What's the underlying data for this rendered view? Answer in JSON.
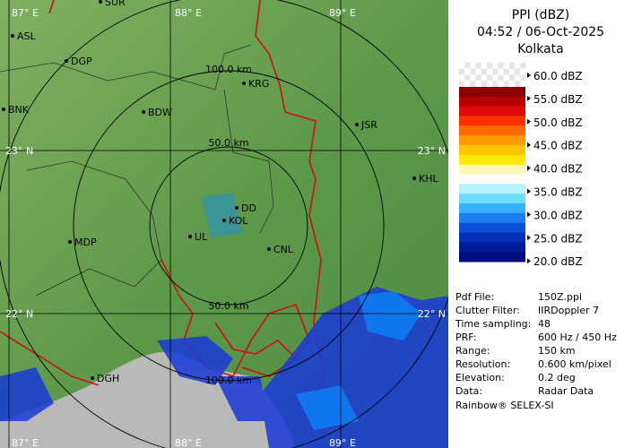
{
  "header": {
    "title": "PPI (dBZ)",
    "datetime": "04:52 / 06-Oct-2025",
    "station": "Kolkata"
  },
  "legend": {
    "labels": [
      "60.0 dBZ",
      "55.0 dBZ",
      "50.0 dBZ",
      "45.0 dBZ",
      "40.0 dBZ",
      "35.0 dBZ",
      "30.0 dBZ",
      "25.0 dBZ",
      "20.0 dBZ"
    ],
    "colors": [
      "#8a0000",
      "#b80000",
      "#e00a0a",
      "#ff3000",
      "#ff6a00",
      "#ff9a00",
      "#ffc400",
      "#ffe800",
      "#fff7b8",
      "#ffffff",
      "#b8f2ff",
      "#70dcff",
      "#38b0ff",
      "#1a80f0",
      "#0c50d8",
      "#0030b8",
      "#001c98",
      "#000c80"
    ]
  },
  "info": {
    "rows": [
      [
        "Pdf File:",
        "150Z.ppi"
      ],
      [
        "Clutter Filter:",
        "IIRDoppler 7"
      ],
      [
        "Time sampling:",
        "48"
      ],
      [
        "PRF:",
        "600 Hz / 450 Hz"
      ],
      [
        "Range:",
        "150 km"
      ],
      [
        "Resolution:",
        "0.600 km/pixel"
      ],
      [
        "Elevation:",
        "0.2 deg"
      ],
      [
        "Data:",
        "Radar Data"
      ]
    ],
    "footer": "Rainbow® SELEX-SI"
  },
  "map": {
    "grid_labels": [
      "87° E",
      "88° E",
      "89° E",
      "23° N",
      "23° N",
      "22° N",
      "22° N",
      "87° E",
      "88° E",
      "89° E"
    ],
    "range_labels": [
      "100.0 km",
      "50.0 km",
      "50.0 km",
      "100.0 km"
    ],
    "cities": [
      "ASL",
      "DGP",
      "BNK",
      "BDW",
      "KRG",
      "JSR",
      "KHL",
      "DD",
      "KOL",
      "UL",
      "CNL",
      "MDP",
      "DGH",
      "SUR"
    ]
  }
}
